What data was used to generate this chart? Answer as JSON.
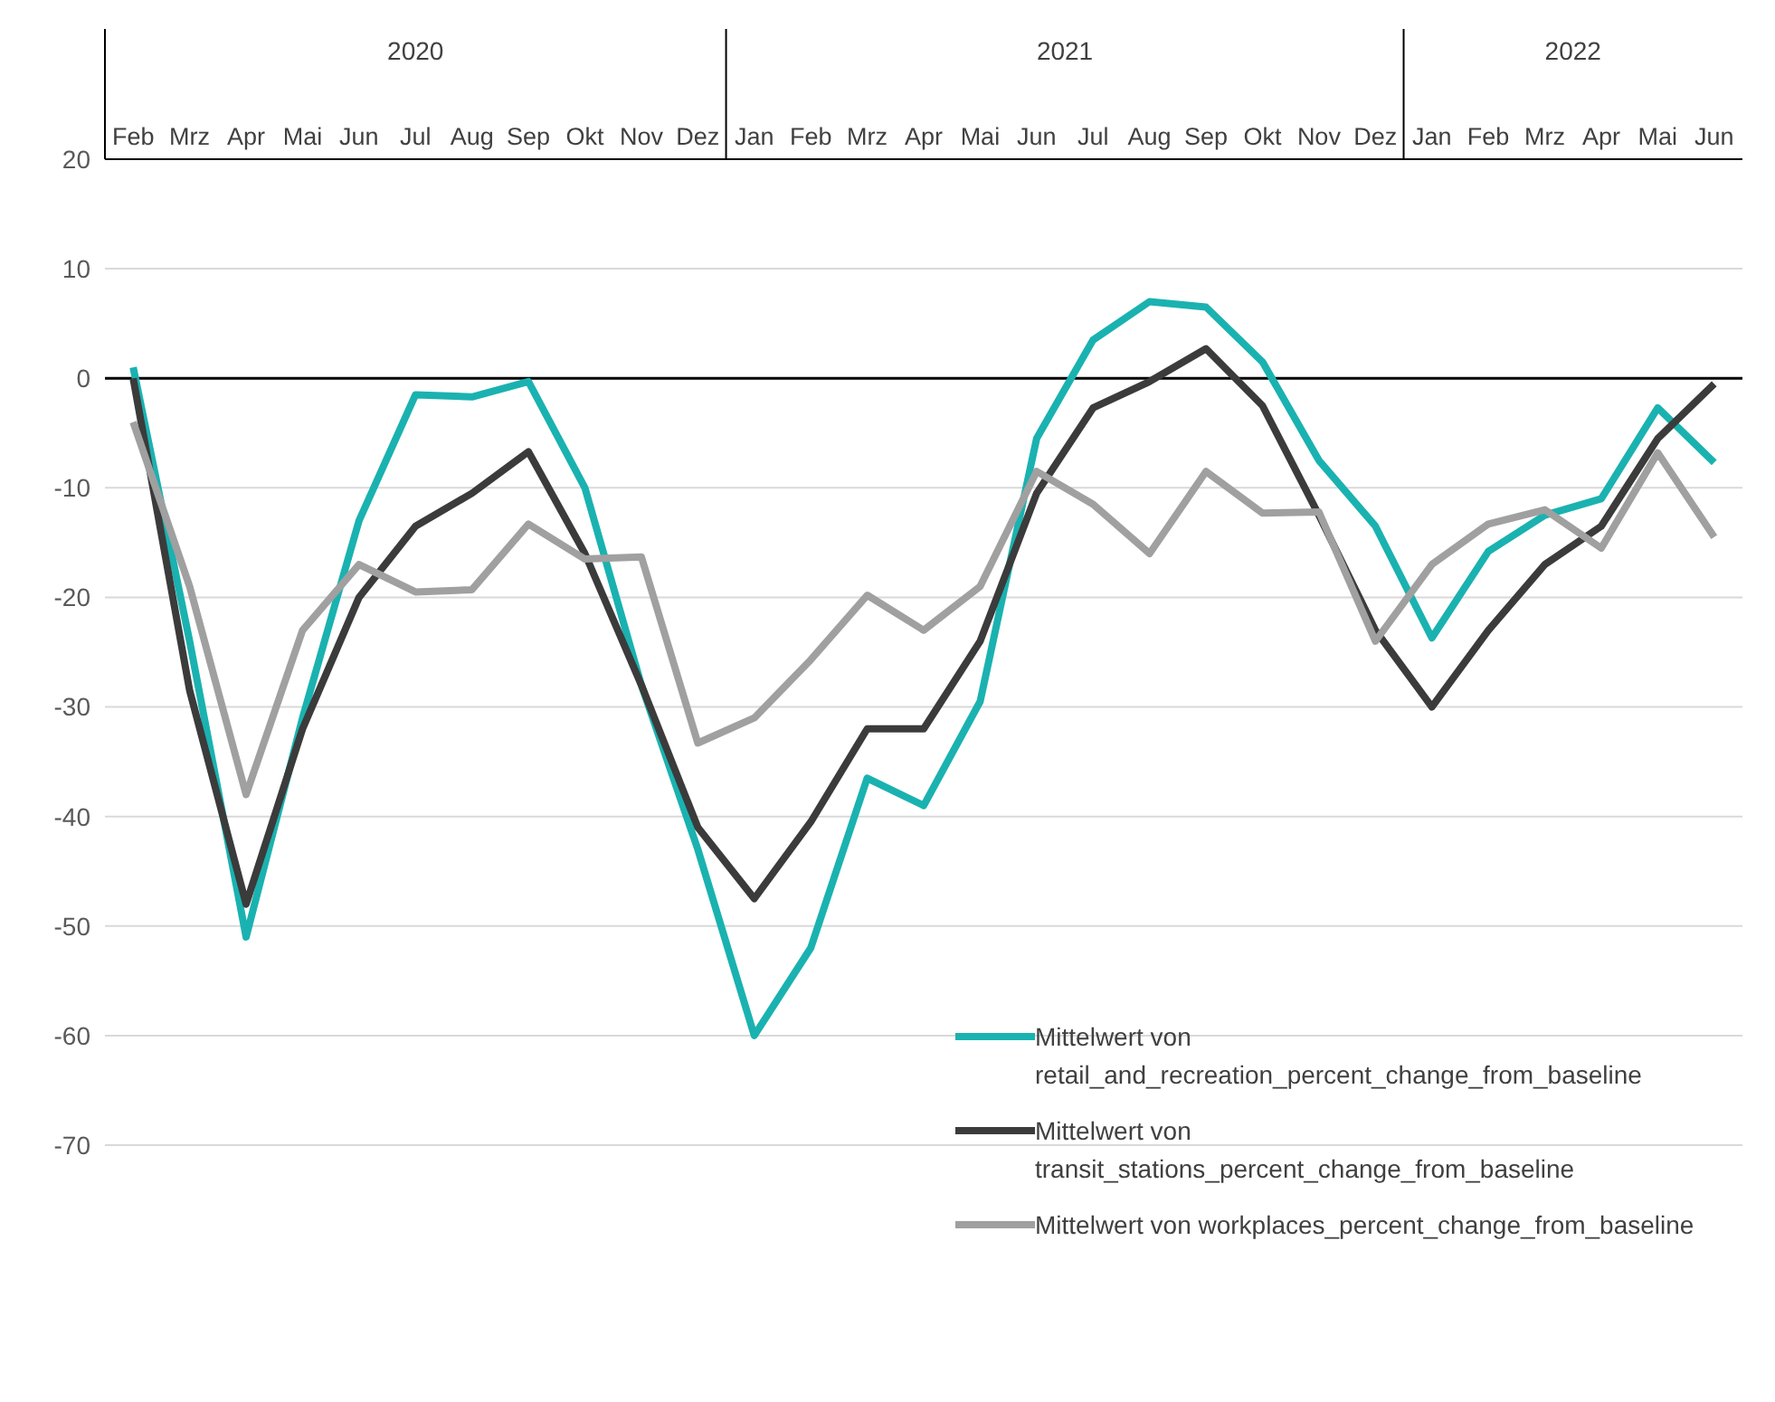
{
  "chart_data": {
    "type": "line",
    "categories": [
      "Feb",
      "Mrz",
      "Apr",
      "Mai",
      "Jun",
      "Jul",
      "Aug",
      "Sep",
      "Okt",
      "Nov",
      "Dez",
      "Jan",
      "Feb",
      "Mrz",
      "Apr",
      "Mai",
      "Jun",
      "Jul",
      "Aug",
      "Sep",
      "Okt",
      "Nov",
      "Dez",
      "Jan",
      "Feb",
      "Mrz",
      "Apr",
      "Mai",
      "Jun"
    ],
    "series": [
      {
        "name": "Mittelwert von retail_and_recreation_percent_change_from_baseline",
        "color": "#1ab2b0",
        "values": [
          1,
          -24,
          -51,
          -31,
          -13,
          -1.5,
          -1.7,
          -0.3,
          -10,
          -28,
          -43,
          -60,
          -52,
          -36.5,
          -39,
          -29.5,
          -5.5,
          3.5,
          7,
          6.5,
          1.5,
          -7.5,
          -13.5,
          -23.7,
          -15.8,
          -12.5,
          -11,
          -2.7,
          -7.7
        ]
      },
      {
        "name": "Mittelwert von transit_stations_percent_change_from_baseline",
        "color": "#3b3b3b",
        "values": [
          0,
          -28.5,
          -48,
          -32,
          -20,
          -13.5,
          -10.5,
          -6.7,
          -16,
          -28,
          -41,
          -47.5,
          -40.5,
          -32,
          -32,
          -24,
          -10.5,
          -2.7,
          -0.3,
          2.7,
          -2.5,
          -12.5,
          -23,
          -30,
          -23,
          -17,
          -13.5,
          -5.5,
          -0.5
        ]
      },
      {
        "name": "Mittelwert von workplaces_percent_change_from_baseline",
        "color": "#a0a0a0",
        "values": [
          -4,
          -19,
          -38,
          -23,
          -17,
          -19.5,
          -19.3,
          -13.3,
          -16.5,
          -16.3,
          -33.3,
          -31,
          -25.7,
          -19.8,
          -23,
          -19,
          -8.5,
          -11.5,
          -16,
          -8.5,
          -12.3,
          -12.2,
          -24,
          -17,
          -13.3,
          -12,
          -15.5,
          -6.8,
          -14.5
        ]
      }
    ],
    "ylim": [
      -70,
      20
    ],
    "yticks": [
      -70,
      -60,
      -50,
      -40,
      -30,
      -20,
      -10,
      0,
      10,
      20
    ],
    "grid": "y",
    "legend": "bottom right",
    "ref_lines": [
      {
        "axis": "y",
        "value": 0,
        "color": "#000000"
      }
    ],
    "annotations": [
      "2020",
      "2021",
      "2022"
    ]
  }
}
